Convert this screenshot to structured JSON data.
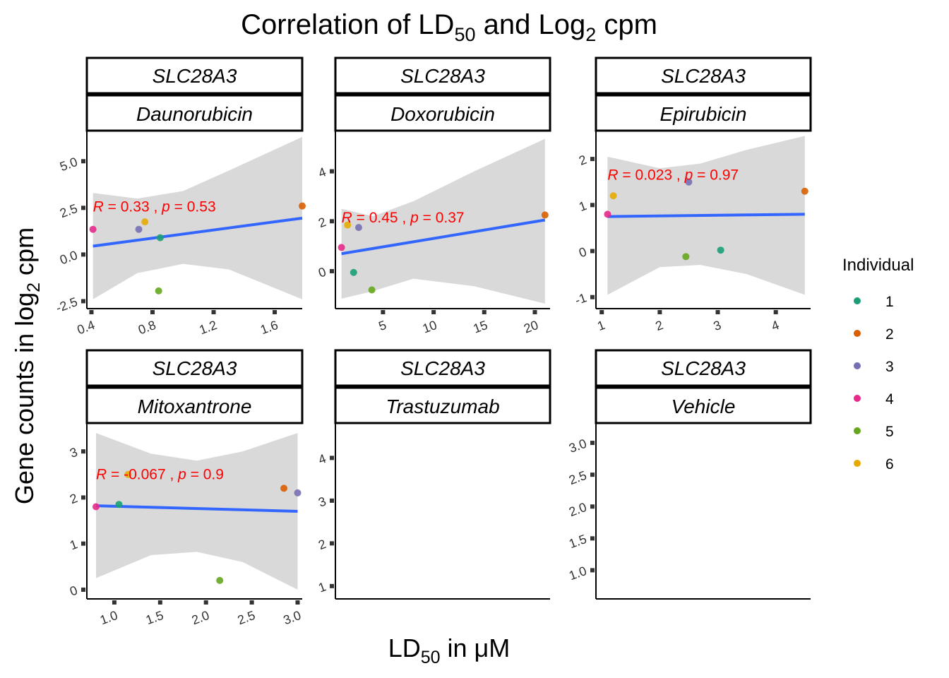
{
  "title": {
    "main": "Correlation of LD",
    "sub1": "50",
    "mid": " and Log",
    "sub2": "2",
    "end": " cpm"
  },
  "xlabel": {
    "main": "LD",
    "sub": "50",
    "end": " in μM"
  },
  "ylabel": {
    "main": "Gene counts in log",
    "sub": "2",
    "end": " cpm"
  },
  "legend": {
    "title": "Individual",
    "entries": [
      {
        "label": "1",
        "color": "#1B9E77"
      },
      {
        "label": "2",
        "color": "#D95F02"
      },
      {
        "label": "3",
        "color": "#7570B3"
      },
      {
        "label": "4",
        "color": "#E7298A"
      },
      {
        "label": "5",
        "color": "#66A61E"
      },
      {
        "label": "6",
        "color": "#E6AB02"
      }
    ]
  },
  "colors": {
    "regression": "#3366FF",
    "ribbon": "#D9D9D9",
    "annotation": "#FF0000"
  },
  "chart_data": [
    {
      "type": "scatter",
      "gene": "SLC28A3",
      "drug": "Daunorubicin",
      "xlim": [
        0.37,
        1.78
      ],
      "ylim": [
        -2.9,
        6.6
      ],
      "xticks": [
        0.4,
        0.8,
        1.2,
        1.6
      ],
      "xtick_labels": [
        "0.4",
        "0.8",
        "1.2",
        "1.6"
      ],
      "yticks": [
        -2.5,
        0.0,
        2.5,
        5.0
      ],
      "ytick_labels": [
        "-2.5",
        "0.0",
        "2.5",
        "5.0"
      ],
      "points": [
        {
          "x": 0.85,
          "y": 0.9,
          "ind": "1"
        },
        {
          "x": 1.78,
          "y": 2.6,
          "ind": "2"
        },
        {
          "x": 0.71,
          "y": 1.35,
          "ind": "3"
        },
        {
          "x": 0.41,
          "y": 1.35,
          "ind": "4"
        },
        {
          "x": 0.84,
          "y": -1.95,
          "ind": "5"
        },
        {
          "x": 0.75,
          "y": 1.75,
          "ind": "6"
        }
      ],
      "fit": [
        [
          0.41,
          0.45
        ],
        [
          1.78,
          1.95
        ]
      ],
      "ribbon_upper": [
        [
          0.41,
          3.3
        ],
        [
          0.7,
          3.0
        ],
        [
          1.0,
          3.4
        ],
        [
          1.3,
          4.5
        ],
        [
          1.78,
          6.3
        ]
      ],
      "ribbon_lower": [
        [
          0.41,
          -2.4
        ],
        [
          0.7,
          -1.0
        ],
        [
          1.0,
          -0.5
        ],
        [
          1.3,
          -0.8
        ],
        [
          1.78,
          -2.4
        ]
      ],
      "annotation": {
        "r": "0.33",
        "p": "0.53",
        "x": 0.41,
        "y": 2.3
      }
    },
    {
      "type": "scatter",
      "gene": "SLC28A3",
      "drug": "Doxorubicin",
      "xlim": [
        0.3,
        21.5
      ],
      "ylim": [
        -1.5,
        5.6
      ],
      "xticks": [
        5,
        10,
        15,
        20
      ],
      "xtick_labels": [
        "5",
        "10",
        "15",
        "20"
      ],
      "yticks": [
        0,
        2,
        4
      ],
      "ytick_labels": [
        "0",
        "2",
        "4"
      ],
      "points": [
        {
          "x": 2.1,
          "y": -0.05,
          "ind": "1"
        },
        {
          "x": 21.0,
          "y": 2.25,
          "ind": "2"
        },
        {
          "x": 2.6,
          "y": 1.75,
          "ind": "3"
        },
        {
          "x": 0.9,
          "y": 0.95,
          "ind": "4"
        },
        {
          "x": 3.9,
          "y": -0.75,
          "ind": "5"
        },
        {
          "x": 1.5,
          "y": 1.85,
          "ind": "6"
        }
      ],
      "fit": [
        [
          0.9,
          0.7
        ],
        [
          21.0,
          2.05
        ]
      ],
      "ribbon_upper": [
        [
          0.9,
          2.5
        ],
        [
          4.0,
          2.2
        ],
        [
          8.0,
          2.8
        ],
        [
          14.0,
          4.0
        ],
        [
          21.0,
          5.3
        ]
      ],
      "ribbon_lower": [
        [
          0.9,
          -1.1
        ],
        [
          4.0,
          -0.8
        ],
        [
          8.0,
          -0.3
        ],
        [
          14.0,
          -0.6
        ],
        [
          21.0,
          -1.3
        ]
      ],
      "annotation": {
        "r": "0.45",
        "p": "0.37",
        "x": 0.9,
        "y": 1.95
      }
    },
    {
      "type": "scatter",
      "gene": "SLC28A3",
      "drug": "Epirubicin",
      "xlim": [
        0.9,
        4.6
      ],
      "ylim": [
        -1.25,
        2.6
      ],
      "xticks": [
        1,
        2,
        3,
        4
      ],
      "xtick_labels": [
        "1",
        "2",
        "3",
        "4"
      ],
      "yticks": [
        -1,
        0,
        1,
        2
      ],
      "ytick_labels": [
        "-1",
        "0",
        "1",
        "2"
      ],
      "points": [
        {
          "x": 3.05,
          "y": 0.02,
          "ind": "1"
        },
        {
          "x": 4.5,
          "y": 1.3,
          "ind": "2"
        },
        {
          "x": 2.5,
          "y": 1.5,
          "ind": "3"
        },
        {
          "x": 1.1,
          "y": 0.8,
          "ind": "4"
        },
        {
          "x": 2.45,
          "y": -0.12,
          "ind": "5"
        },
        {
          "x": 1.2,
          "y": 1.2,
          "ind": "6"
        }
      ],
      "fit": [
        [
          1.1,
          0.75
        ],
        [
          4.5,
          0.8
        ]
      ],
      "ribbon_upper": [
        [
          1.1,
          2.05
        ],
        [
          2.0,
          1.8
        ],
        [
          2.7,
          1.9
        ],
        [
          3.5,
          2.2
        ],
        [
          4.5,
          2.5
        ]
      ],
      "ribbon_lower": [
        [
          1.1,
          -0.95
        ],
        [
          2.0,
          -0.35
        ],
        [
          2.7,
          -0.3
        ],
        [
          3.5,
          -0.5
        ],
        [
          4.5,
          -0.95
        ]
      ],
      "annotation": {
        "r": "0.023",
        "p": "0.97",
        "x": 1.1,
        "y": 1.55
      }
    },
    {
      "type": "scatter",
      "gene": "SLC28A3",
      "drug": "Mitoxantrone",
      "xlim": [
        0.7,
        3.05
      ],
      "ylim": [
        -0.2,
        3.6
      ],
      "xticks": [
        1.0,
        1.5,
        2.0,
        2.5,
        3.0
      ],
      "xtick_labels": [
        "1.0",
        "1.5",
        "2.0",
        "2.5",
        "3.0"
      ],
      "yticks": [
        0,
        1,
        2,
        3
      ],
      "ytick_labels": [
        "0",
        "1",
        "2",
        "3"
      ],
      "points": [
        {
          "x": 1.05,
          "y": 1.85,
          "ind": "1"
        },
        {
          "x": 2.85,
          "y": 2.2,
          "ind": "2"
        },
        {
          "x": 3.0,
          "y": 2.1,
          "ind": "3"
        },
        {
          "x": 0.8,
          "y": 1.8,
          "ind": "4"
        },
        {
          "x": 2.15,
          "y": 0.2,
          "ind": "5"
        },
        {
          "x": 1.15,
          "y": 2.5,
          "ind": "6"
        }
      ],
      "fit": [
        [
          0.8,
          1.82
        ],
        [
          3.0,
          1.7
        ]
      ],
      "ribbon_upper": [
        [
          0.8,
          3.4
        ],
        [
          1.4,
          2.95
        ],
        [
          1.9,
          2.8
        ],
        [
          2.4,
          3.0
        ],
        [
          3.0,
          3.4
        ]
      ],
      "ribbon_lower": [
        [
          0.8,
          0.25
        ],
        [
          1.4,
          0.75
        ],
        [
          1.9,
          0.82
        ],
        [
          2.4,
          0.6
        ],
        [
          3.0,
          0.0
        ]
      ],
      "annotation": {
        "r": "-0.067",
        "p": "0.9",
        "x": 0.8,
        "y": 2.4
      }
    },
    {
      "type": "scatter",
      "gene": "SLC28A3",
      "drug": "Trastuzumab",
      "xlim": [
        0,
        1
      ],
      "ylim": [
        0.7,
        4.8
      ],
      "xticks": [],
      "xtick_labels": [],
      "yticks": [
        1,
        2,
        3,
        4
      ],
      "ytick_labels": [
        "1",
        "2",
        "3",
        "4"
      ],
      "points": [],
      "fit": [],
      "ribbon_upper": [],
      "ribbon_lower": [],
      "annotation": null
    },
    {
      "type": "scatter",
      "gene": "SLC28A3",
      "drug": "Vehicle",
      "xlim": [
        0,
        1
      ],
      "ylim": [
        0.55,
        3.3
      ],
      "xticks": [],
      "xtick_labels": [],
      "yticks": [
        1.0,
        1.5,
        2.0,
        2.5,
        3.0
      ],
      "ytick_labels": [
        "1.0",
        "1.5",
        "2.0",
        "2.5",
        "3.0"
      ],
      "points": [],
      "fit": [],
      "ribbon_upper": [],
      "ribbon_lower": [],
      "annotation": null
    }
  ]
}
